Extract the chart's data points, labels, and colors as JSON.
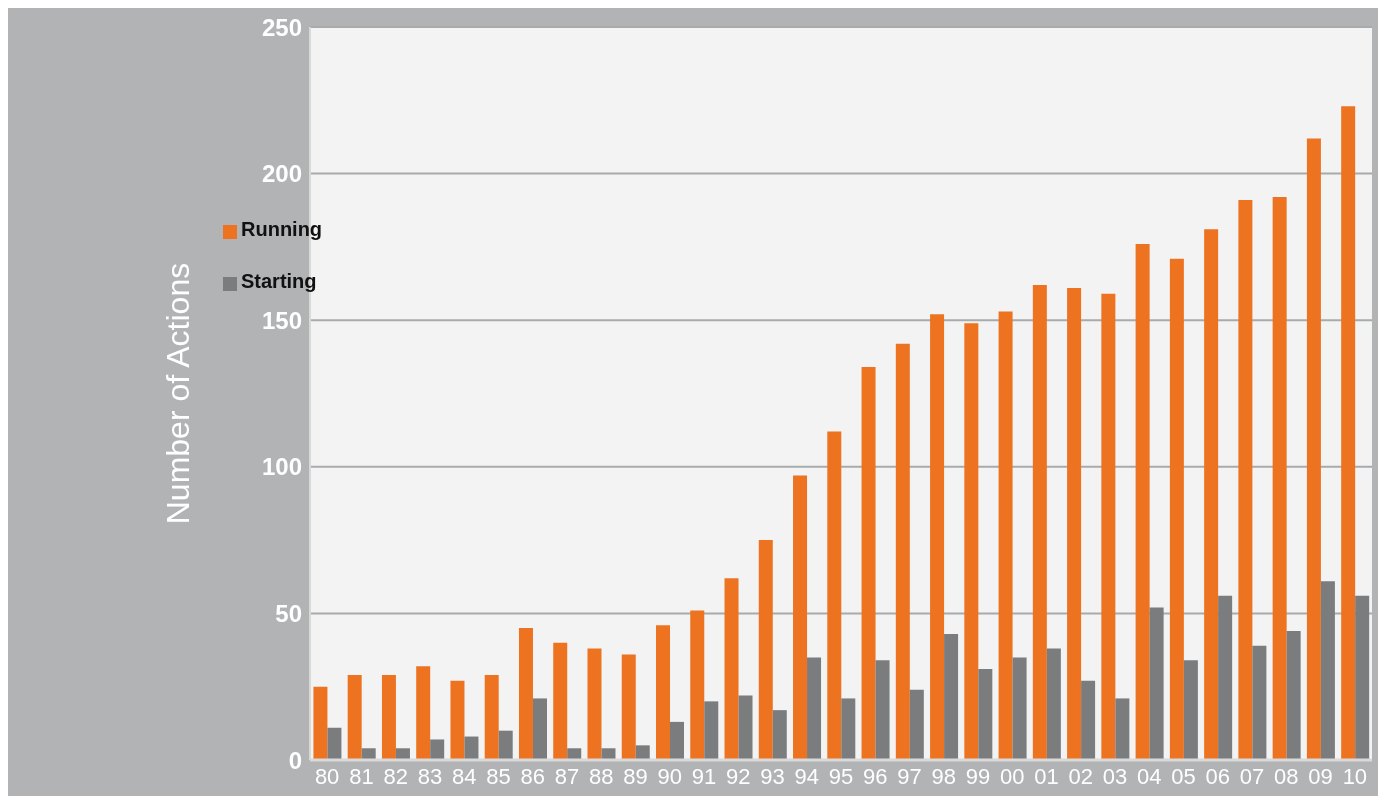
{
  "chart_data": {
    "type": "bar",
    "ylabel": "Number of Actions",
    "categories": [
      "80",
      "81",
      "82",
      "83",
      "84",
      "85",
      "86",
      "87",
      "88",
      "89",
      "90",
      "91",
      "92",
      "93",
      "94",
      "95",
      "96",
      "97",
      "98",
      "99",
      "00",
      "01",
      "02",
      "03",
      "04",
      "05",
      "06",
      "07",
      "08",
      "09",
      "10"
    ],
    "series": [
      {
        "name": "Running",
        "color": "#ed7320",
        "values": [
          25,
          29,
          29,
          32,
          27,
          29,
          45,
          40,
          38,
          36,
          46,
          51,
          62,
          75,
          97,
          112,
          134,
          142,
          152,
          149,
          153,
          162,
          161,
          159,
          176,
          171,
          181,
          191,
          192,
          212,
          223
        ]
      },
      {
        "name": "Starting",
        "color": "#7b7c7e",
        "values": [
          11,
          4,
          4,
          7,
          8,
          10,
          21,
          4,
          4,
          5,
          13,
          20,
          22,
          17,
          35,
          21,
          34,
          24,
          43,
          31,
          35,
          38,
          27,
          21,
          52,
          34,
          56,
          39,
          44,
          61,
          56
        ]
      }
    ],
    "ylim": [
      0,
      250
    ],
    "yticks": [
      0,
      50,
      100,
      150,
      200,
      250
    ],
    "grid": "y",
    "legend": "top left"
  }
}
